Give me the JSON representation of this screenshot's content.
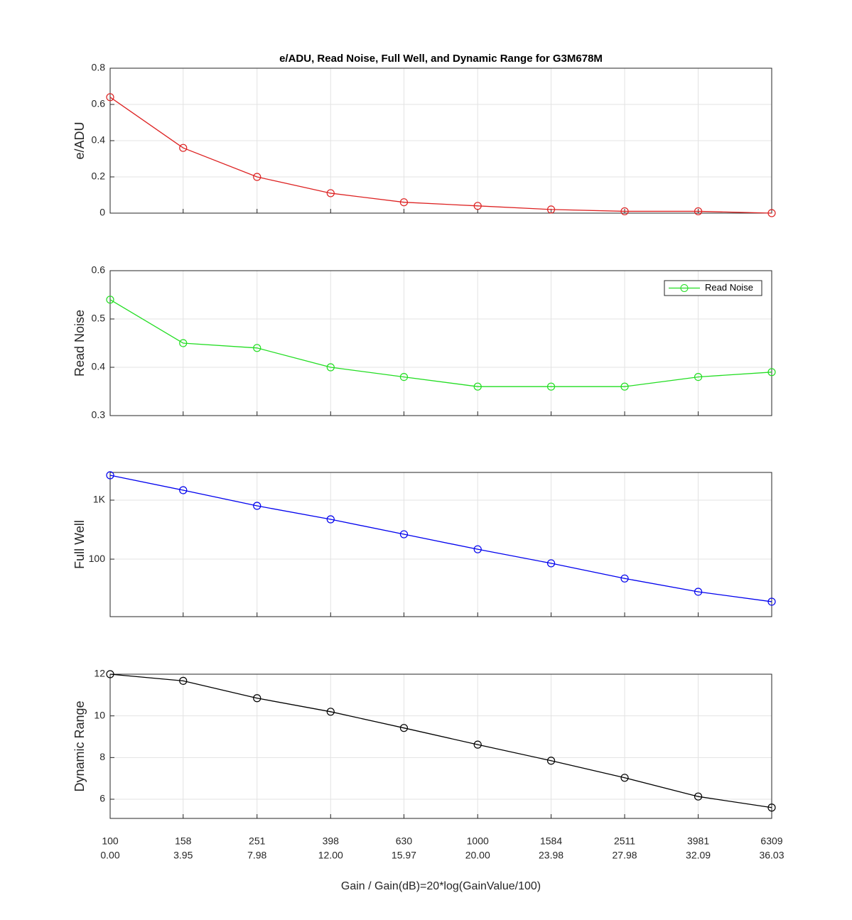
{
  "chart_data": [
    {
      "type": "line",
      "title": "e/ADU, Read Noise, Full Well, and Dynamic Range for G3M678M",
      "ylabel": "e/ADU",
      "x": [
        100,
        158,
        251,
        398,
        630,
        1000,
        1584,
        2511,
        3981,
        6309
      ],
      "xlim": [
        100,
        6309
      ],
      "xscale": "log",
      "xticks": [
        100,
        158,
        251,
        398,
        630,
        1000,
        1584,
        2511,
        3981,
        6309
      ],
      "ylim": [
        0,
        0.8
      ],
      "yticks": [
        0,
        0.2,
        0.4,
        0.6,
        0.8
      ],
      "grid": true,
      "series": [
        {
          "name": "e/ADU",
          "color": "#dd2222",
          "values": [
            0.64,
            0.36,
            0.2,
            0.11,
            0.06,
            0.04,
            0.02,
            0.01,
            0.01,
            0.0
          ]
        }
      ]
    },
    {
      "type": "line",
      "ylabel": "Read Noise",
      "x": [
        100,
        158,
        251,
        398,
        630,
        1000,
        1584,
        2511,
        3981,
        6309
      ],
      "xlim": [
        100,
        6309
      ],
      "xscale": "log",
      "xticks": [
        100,
        158,
        251,
        398,
        630,
        1000,
        1584,
        2511,
        3981,
        6309
      ],
      "ylim": [
        0.3,
        0.6
      ],
      "yticks": [
        0.3,
        0.4,
        0.5,
        0.6
      ],
      "grid": true,
      "legend": "northeast",
      "series": [
        {
          "name": "Read Noise",
          "color": "#22dd22",
          "values": [
            0.54,
            0.45,
            0.44,
            0.4,
            0.38,
            0.36,
            0.36,
            0.36,
            0.38,
            0.39
          ]
        }
      ]
    },
    {
      "type": "line",
      "ylabel": "Full Well",
      "x": [
        100,
        158,
        251,
        398,
        630,
        1000,
        1584,
        2511,
        3981,
        6309
      ],
      "xlim": [
        100,
        6309
      ],
      "xscale": "log",
      "xticks": [
        100,
        158,
        251,
        398,
        630,
        1000,
        1584,
        2511,
        3981,
        6309
      ],
      "ylim": [
        10.6,
        2950
      ],
      "yscale": "log",
      "yticks": [
        100,
        {
          "value": 1000,
          "label": "1K"
        }
      ],
      "grid": true,
      "series": [
        {
          "name": "Full Well",
          "color": "#0000ee",
          "values": [
            2640,
            1475,
            801,
            473,
            264,
            147,
            85,
            47,
            28,
            19
          ]
        }
      ]
    },
    {
      "type": "line",
      "ylabel": "Dynamic Range",
      "xlabel": "Gain / Gain(dB)=20*log(GainValue/100)",
      "x": [
        100,
        158,
        251,
        398,
        630,
        1000,
        1584,
        2511,
        3981,
        6309
      ],
      "xlim": [
        100,
        6309
      ],
      "xscale": "log",
      "xticks": [
        100,
        158,
        251,
        398,
        630,
        1000,
        1584,
        2511,
        3981,
        6309
      ],
      "xtick_sublabels": [
        "0.00",
        "3.95",
        "7.98",
        "12.00",
        "15.97",
        "20.00",
        "23.98",
        "27.98",
        "32.09",
        "36.03"
      ],
      "ylim": [
        5.08,
        12
      ],
      "yticks": [
        6,
        8,
        10,
        12
      ],
      "grid": true,
      "series": [
        {
          "name": "Dynamic Range",
          "color": "#000000",
          "values": [
            12,
            11.68,
            10.85,
            10.2,
            9.42,
            8.62,
            7.85,
            7.03,
            6.13,
            5.6
          ]
        }
      ]
    }
  ]
}
